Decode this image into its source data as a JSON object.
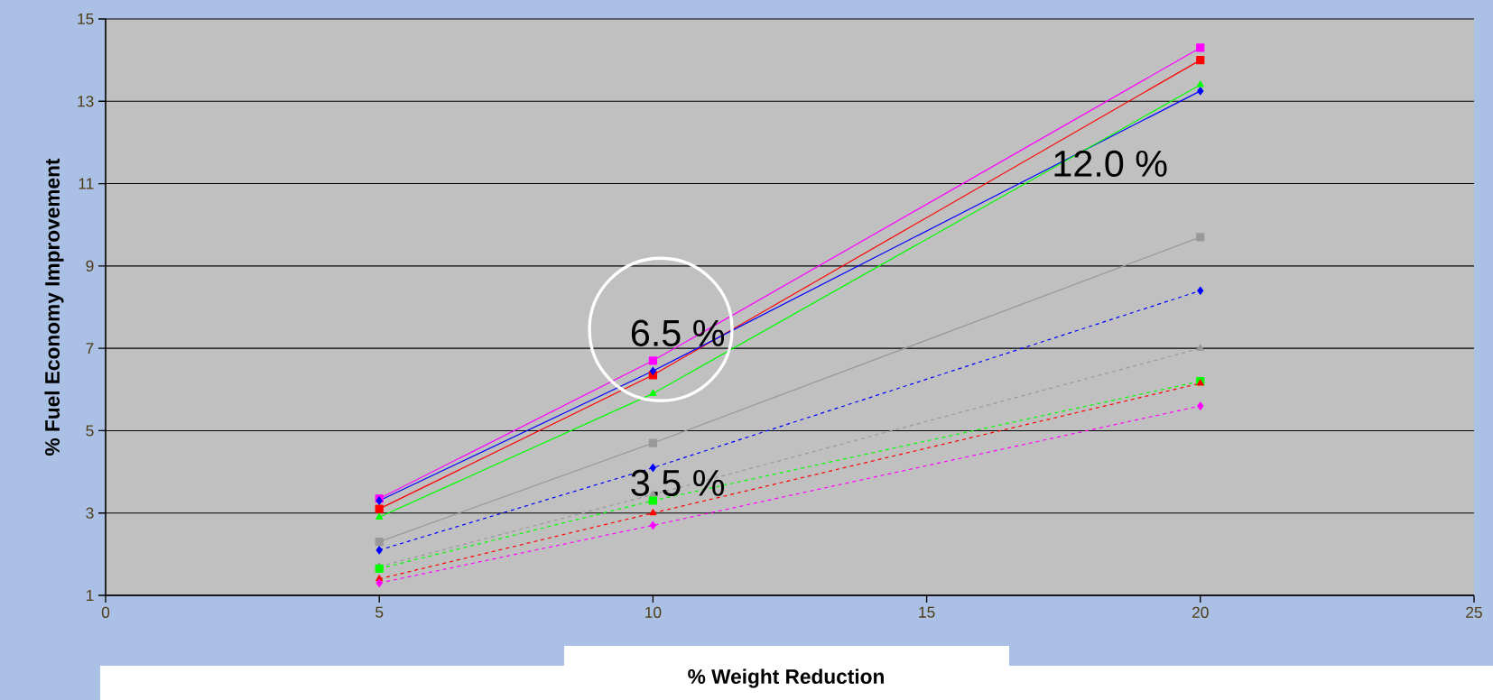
{
  "chart_data": {
    "type": "line",
    "xlabel": "% Weight Reduction",
    "ylabel": "% Fuel Economy Improvement",
    "x": [
      5,
      10,
      20
    ],
    "series": [
      {
        "color": "#ff00ff",
        "values": [
          3.35,
          6.7,
          14.3
        ],
        "line_style": "solid",
        "marker": "square"
      },
      {
        "color": "#ff0000",
        "values": [
          3.1,
          6.35,
          14.0
        ],
        "line_style": "solid",
        "marker": "square"
      },
      {
        "color": "#0000ff",
        "values": [
          3.3,
          6.45,
          13.25
        ],
        "line_style": "solid",
        "marker": "diamond"
      },
      {
        "color": "#00ff00",
        "values": [
          2.9,
          5.9,
          13.4
        ],
        "line_style": "solid",
        "marker": "triangle"
      },
      {
        "color": "#999999",
        "values": [
          2.3,
          4.7,
          9.7
        ],
        "line_style": "solid",
        "marker": "square"
      },
      {
        "color": "#0000ff",
        "values": [
          2.1,
          4.1,
          8.4
        ],
        "line_style": "dashed",
        "marker": "diamond"
      },
      {
        "color": "#999999",
        "values": [
          1.7,
          3.45,
          7.0
        ],
        "line_style": "dashed",
        "marker": "triangle"
      },
      {
        "color": "#00ff00",
        "values": [
          1.65,
          3.3,
          6.2
        ],
        "line_style": "dashed",
        "marker": "square"
      },
      {
        "color": "#ff0000",
        "values": [
          1.4,
          3.0,
          6.15
        ],
        "line_style": "dashed",
        "marker": "triangle"
      },
      {
        "color": "#ff00ff",
        "values": [
          1.3,
          2.7,
          5.6
        ],
        "line_style": "dashed",
        "marker": "diamond"
      }
    ],
    "xlim": [
      0,
      25
    ],
    "xticks": [
      0,
      5,
      10,
      15,
      20,
      25
    ],
    "ylim": [
      1,
      15
    ],
    "yticks": [
      1,
      3,
      5,
      7,
      9,
      11,
      13,
      15
    ],
    "grid": "y",
    "annotations": [
      "12.0 %",
      "6.5 %",
      "3.5 %"
    ]
  }
}
